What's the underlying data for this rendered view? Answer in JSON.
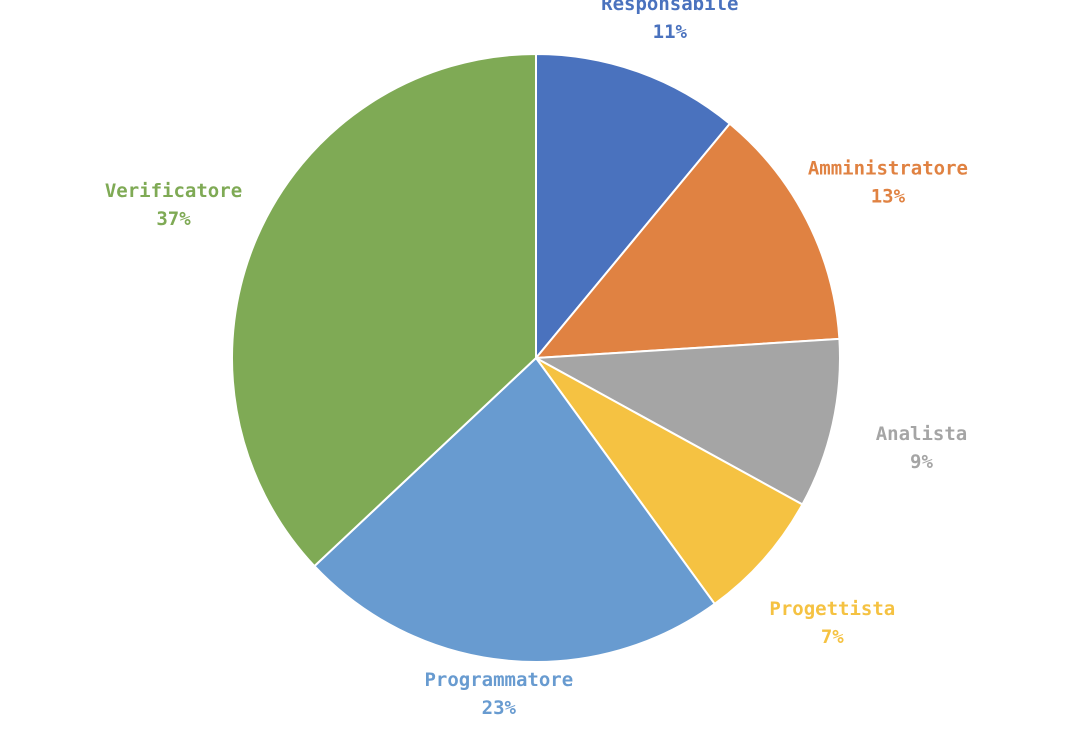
{
  "chart_data": {
    "type": "pie",
    "title": "",
    "slices": [
      {
        "label": "Responsabile",
        "value": 11,
        "value_label": "11%",
        "color": "#4A72BE"
      },
      {
        "label": "Amministratore",
        "value": 13,
        "value_label": "13%",
        "color": "#E08242"
      },
      {
        "label": "Analista",
        "value": 9,
        "value_label": "9%",
        "color": "#A5A5A5"
      },
      {
        "label": "Progettista",
        "value": 7,
        "value_label": "7%",
        "color": "#F5C242"
      },
      {
        "label": "Programmatore",
        "value": 23,
        "value_label": "23%",
        "color": "#689BD0"
      },
      {
        "label": "Verificatore",
        "value": 37,
        "value_label": "37%",
        "color": "#7FAA55"
      }
    ],
    "legend": "none",
    "start_angle": "top",
    "direction": "clockwise"
  }
}
